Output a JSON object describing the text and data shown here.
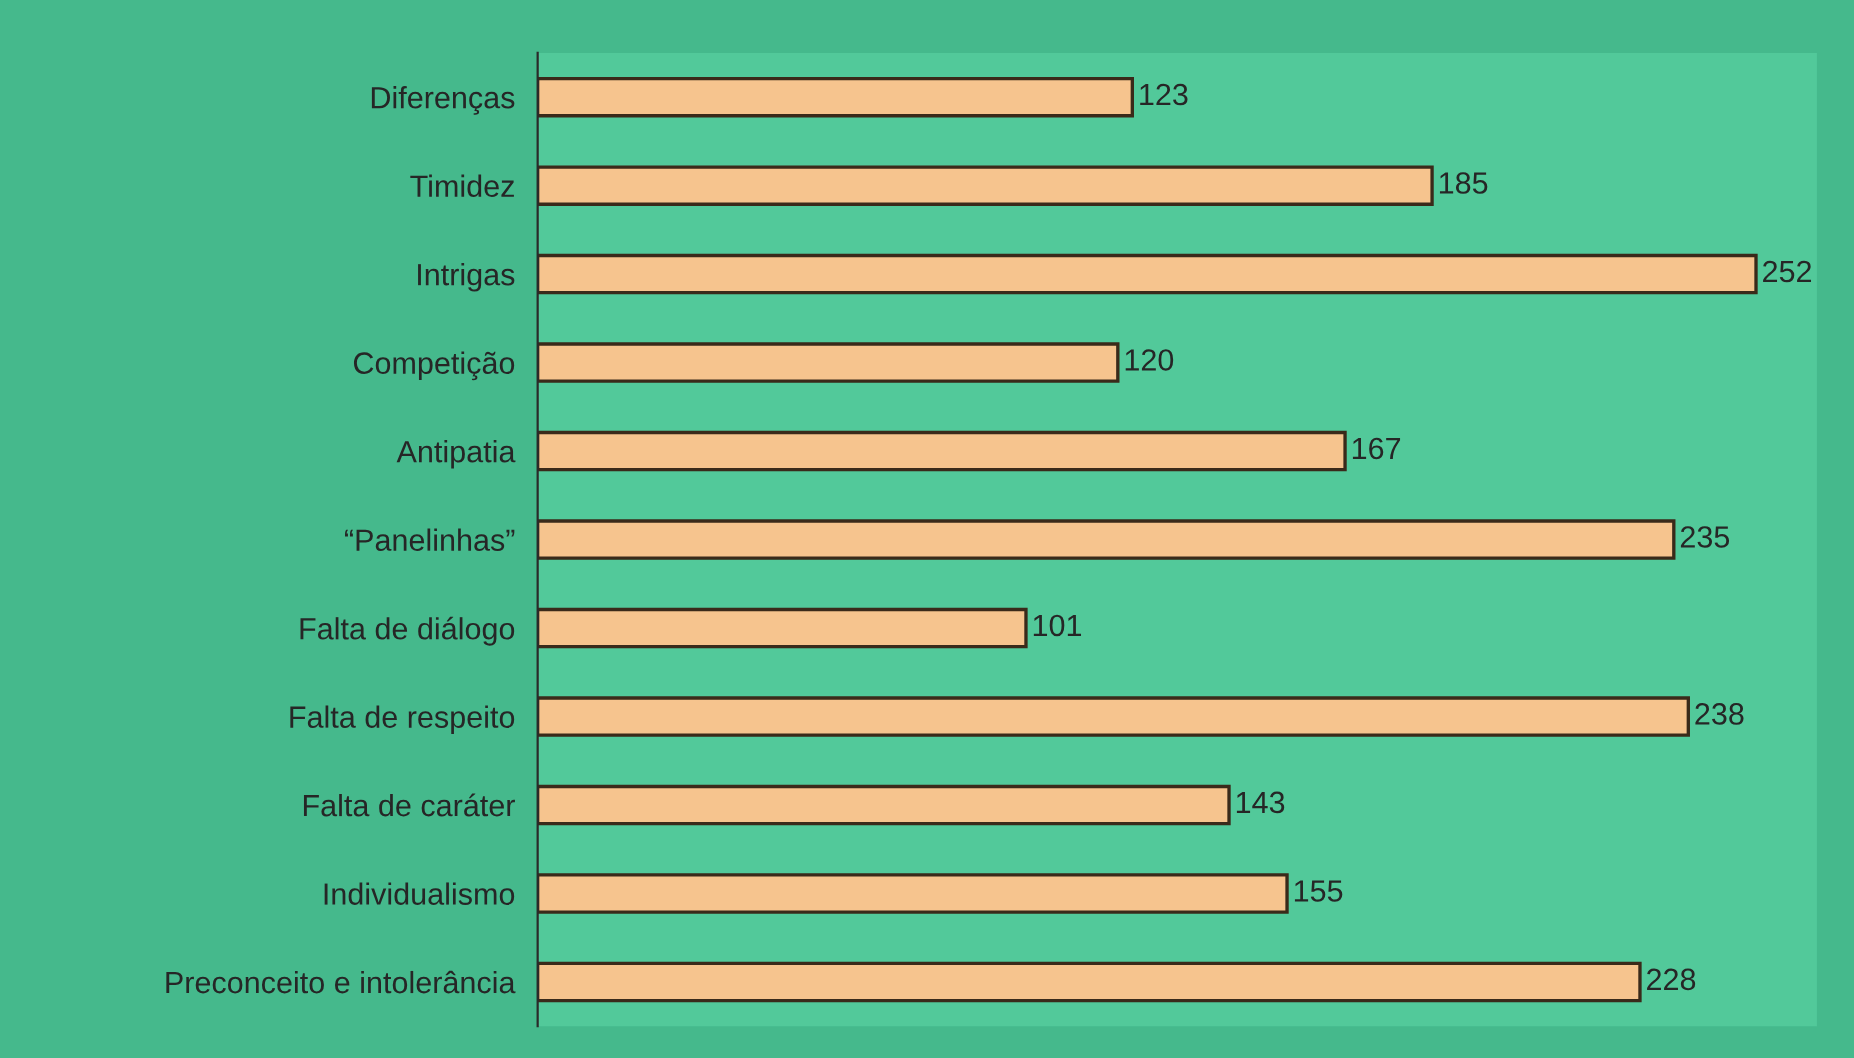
{
  "chart_data": {
    "type": "bar",
    "orientation": "horizontal",
    "categories": [
      "Diferenças",
      "Timidez",
      "Intrigas",
      "Competição",
      "Antipatia",
      "“Panelinhas”",
      "Falta de diálogo",
      "Falta de respeito",
      "Falta de caráter",
      "Individualismo",
      "Preconceito e intolerância"
    ],
    "values": [
      123,
      185,
      252,
      120,
      167,
      235,
      101,
      238,
      143,
      155,
      228
    ],
    "color": "#f6c48e",
    "data_labels": true,
    "grid": false,
    "legend": false
  }
}
